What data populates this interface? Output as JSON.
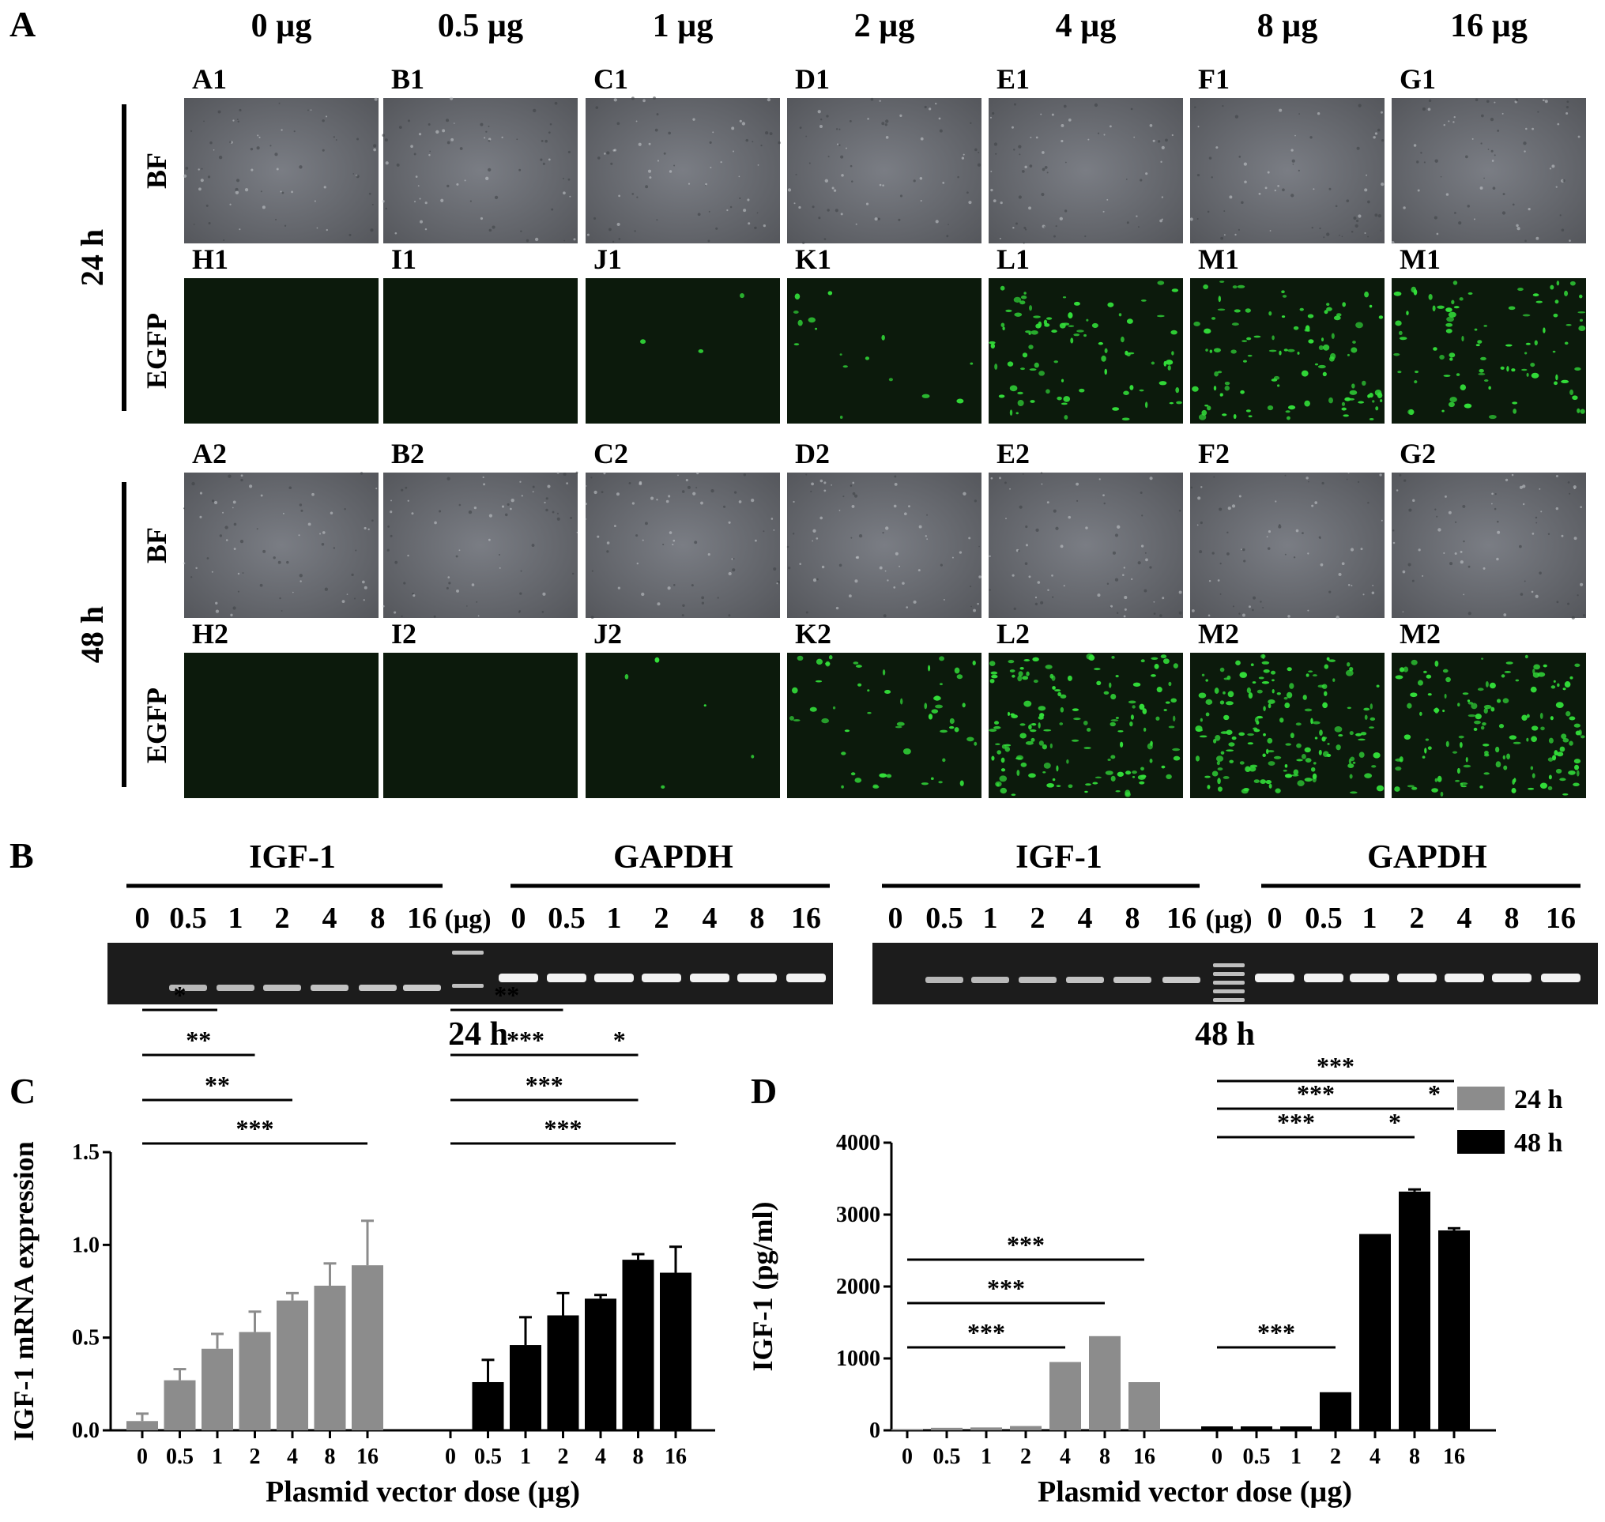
{
  "panel_letters": [
    "A",
    "B",
    "C",
    "D"
  ],
  "panel_a": {
    "doses": [
      "0 µg",
      "0.5 µg",
      "1 µg",
      "2 µg",
      "4 µg",
      "8 µg",
      "16 µg"
    ],
    "time_labels": [
      "24 h",
      "48 h"
    ],
    "row_labels": [
      "BF",
      "EGFP",
      "BF",
      "EGFP"
    ],
    "row_types": [
      "bf",
      "egfp",
      "bf",
      "egfp"
    ],
    "cell_labels": [
      [
        "A1",
        "B1",
        "C1",
        "D1",
        "E1",
        "F1",
        "G1"
      ],
      [
        "H1",
        "I1",
        "J1",
        "K1",
        "L1",
        "M1",
        "M1"
      ],
      [
        "A2",
        "B2",
        "C2",
        "D2",
        "E2",
        "F2",
        "G2"
      ],
      [
        "H2",
        "I2",
        "J2",
        "K2",
        "L2",
        "M2",
        "M2"
      ]
    ],
    "egfp_intensity": [
      [
        0,
        0,
        0.02,
        0.1,
        0.55,
        0.65,
        0.55
      ],
      [
        0,
        0,
        0.03,
        0.35,
        0.9,
        1.0,
        0.85
      ]
    ],
    "colors": {
      "bf": "#6d6f74",
      "egfp_bg": "#0c1a0c",
      "egfp_cell": "#33e03a"
    }
  },
  "panel_b": {
    "gels": [
      {
        "time": "24 h",
        "left_label": "IGF-1",
        "right_label": "GAPDH",
        "left_lanes": [
          "0",
          "0.5",
          "1",
          "2",
          "4",
          "8",
          "16"
        ],
        "marker_label": "(µg)",
        "right_lanes": [
          "0",
          "0.5",
          "1",
          "2",
          "4",
          "8",
          "16"
        ]
      },
      {
        "time": "48 h",
        "left_label": "IGF-1",
        "right_label": "GAPDH",
        "left_lanes": [
          "0",
          "0.5",
          "1",
          "2",
          "4",
          "8",
          "16"
        ],
        "marker_label": "(µg)",
        "right_lanes": [
          "0",
          "0.5",
          "1",
          "2",
          "4",
          "8",
          "16"
        ]
      }
    ]
  },
  "chart_data": [
    {
      "type": "bar",
      "panel": "C",
      "ylabel": "IGF-1 mRNA expression",
      "xlabel": "Plasmid vector dose (µg)",
      "ylim": [
        0,
        1.5
      ],
      "yticks": [
        "0.0",
        "0.5",
        "1.0",
        "1.5"
      ],
      "categories": [
        "0",
        "0.5",
        "1",
        "2",
        "4",
        "8",
        "16"
      ],
      "series": [
        {
          "name": "24 h",
          "color": "#8c8c8c",
          "values": [
            0.05,
            0.27,
            0.44,
            0.53,
            0.7,
            0.78,
            0.89
          ],
          "errors": [
            0.04,
            0.06,
            0.08,
            0.11,
            0.04,
            0.12,
            0.24
          ]
        },
        {
          "name": "48 h",
          "color": "#000000",
          "values": [
            0.0,
            0.26,
            0.46,
            0.62,
            0.71,
            0.92,
            0.85
          ],
          "errors": [
            0.0,
            0.12,
            0.15,
            0.12,
            0.02,
            0.03,
            0.14
          ]
        }
      ],
      "significance": [
        {
          "series": 0,
          "from": 0,
          "to": 6,
          "label": "***"
        },
        {
          "series": 0,
          "from": 0,
          "to": 4,
          "label": "**"
        },
        {
          "series": 0,
          "from": 0,
          "to": 3,
          "label": "**"
        },
        {
          "series": 0,
          "from": 0,
          "to": 2,
          "label": "*"
        },
        {
          "series": 1,
          "from": 0,
          "to": 6,
          "label": "***"
        },
        {
          "series": 1,
          "from": 0,
          "to": 5,
          "label": "***"
        },
        {
          "series": 1,
          "from": 0,
          "to": 4,
          "label": "***"
        },
        {
          "series": 1,
          "from": 4,
          "to": 5,
          "label": "*"
        },
        {
          "series": 1,
          "from": 0,
          "to": 3,
          "label": "**"
        }
      ]
    },
    {
      "type": "bar",
      "panel": "D",
      "ylabel": "IGF-1 (pg/ml)",
      "xlabel": "Plasmid vector dose (µg)",
      "ylim": [
        0,
        4000
      ],
      "yticks": [
        "0",
        "1000",
        "2000",
        "3000",
        "4000"
      ],
      "categories": [
        "0",
        "0.5",
        "1",
        "2",
        "4",
        "8",
        "16"
      ],
      "legend": "top-right",
      "series": [
        {
          "name": "24 h",
          "color": "#8c8c8c",
          "values": [
            15,
            35,
            40,
            60,
            950,
            1310,
            670
          ],
          "errors": [
            0,
            0,
            0,
            0,
            0,
            0,
            0
          ]
        },
        {
          "name": "48 h",
          "color": "#000000",
          "values": [
            55,
            55,
            55,
            530,
            2730,
            3320,
            2780
          ],
          "errors": [
            0,
            0,
            0,
            0,
            0,
            30,
            30
          ]
        }
      ],
      "significance": [
        {
          "series": 0,
          "from": 0,
          "to": 6,
          "label": "***"
        },
        {
          "series": 0,
          "from": 0,
          "to": 5,
          "label": "***"
        },
        {
          "series": 0,
          "from": 0,
          "to": 4,
          "label": "***"
        },
        {
          "series": 1,
          "from": 0,
          "to": 6,
          "label": "***"
        },
        {
          "series": 1,
          "from": 0,
          "to": 5,
          "label": "***"
        },
        {
          "series": 1,
          "from": 5,
          "to": 6,
          "label": "*"
        },
        {
          "series": 1,
          "from": 0,
          "to": 4,
          "label": "***"
        },
        {
          "series": 1,
          "from": 4,
          "to": 5,
          "label": "*"
        },
        {
          "series": 1,
          "from": 0,
          "to": 3,
          "label": "***"
        }
      ]
    }
  ]
}
